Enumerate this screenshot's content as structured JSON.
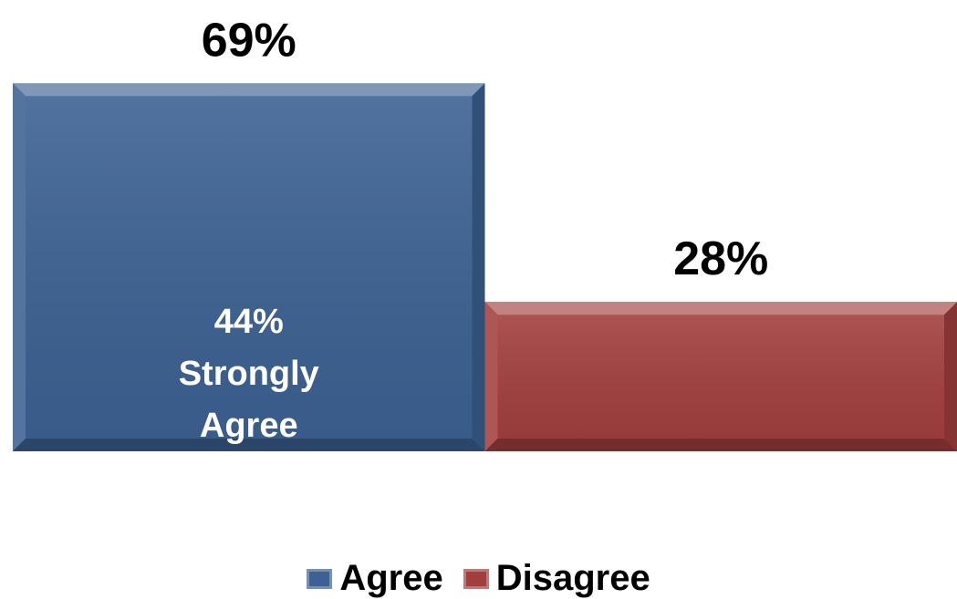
{
  "chart_data": {
    "type": "bar",
    "categories": [
      "Agree",
      "Disagree"
    ],
    "values": [
      69,
      28
    ],
    "value_labels": [
      "69%",
      "28%"
    ],
    "inner_annotation": {
      "category": "Agree",
      "lines": [
        "44%",
        "Strongly",
        "Agree"
      ],
      "value": 44
    },
    "colors": [
      "#3C6192",
      "#A23F3E"
    ],
    "legend": {
      "position": "bottom",
      "entries": [
        "Agree",
        "Disagree"
      ]
    },
    "ylim": [
      0,
      100
    ],
    "grid": false
  }
}
